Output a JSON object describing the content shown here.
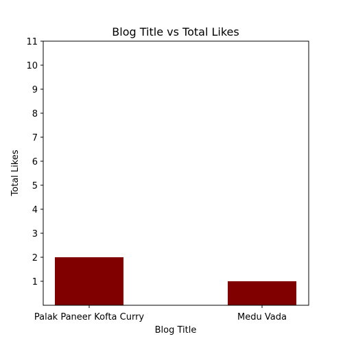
{
  "chart_data": {
    "type": "bar",
    "title": "Blog Title vs Total Likes",
    "xlabel": "Blog Title",
    "ylabel": "Total Likes",
    "categories": [
      "Palak Paneer Kofta Curry",
      "Medu Vada"
    ],
    "values": [
      2,
      1
    ],
    "ylim": [
      0,
      11
    ],
    "yticks": [
      "1",
      "2",
      "3",
      "4",
      "5",
      "6",
      "7",
      "8",
      "9",
      "10",
      "11"
    ],
    "grid": false,
    "bar_color": "#800000"
  }
}
